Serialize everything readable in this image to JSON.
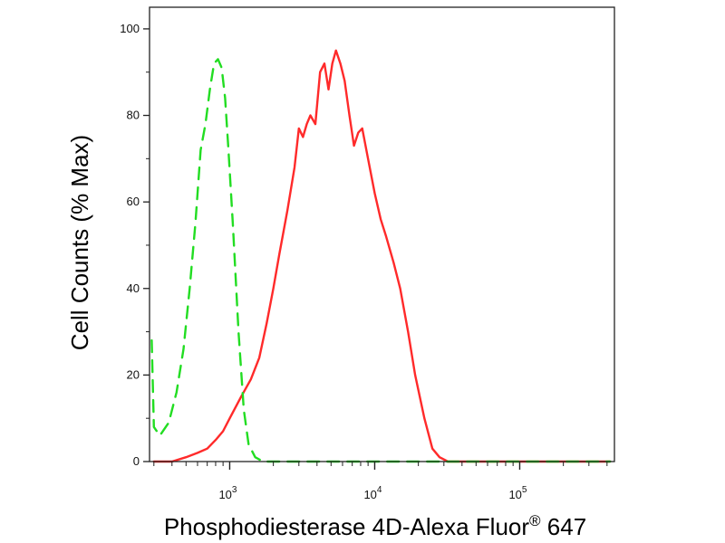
{
  "chart_data": {
    "type": "line",
    "xlabel": "Phosphodiesterase 4D-Alexa Fluor",
    "xlabel_superscript": "®",
    "xlabel_suffix": " 647",
    "ylabel": "Cell Counts (% Max)",
    "x_scale": "log",
    "xlim": [
      280,
      450000
    ],
    "ylim": [
      0,
      105
    ],
    "y_ticks": [
      0,
      20,
      40,
      60,
      80,
      100
    ],
    "x_tick_labels": [
      {
        "value": 1000,
        "base": "10",
        "exp": "3"
      },
      {
        "value": 10000,
        "base": "10",
        "exp": "4"
      },
      {
        "value": 100000,
        "base": "10",
        "exp": "5"
      }
    ],
    "grid": false,
    "legend": "none",
    "series": [
      {
        "color": "#ff2a2a",
        "style": "solid",
        "points": [
          [
            300,
            0
          ],
          [
            400,
            0
          ],
          [
            500,
            1
          ],
          [
            600,
            2
          ],
          [
            700,
            3
          ],
          [
            800,
            5
          ],
          [
            900,
            7
          ],
          [
            1000,
            10
          ],
          [
            1200,
            15
          ],
          [
            1400,
            19
          ],
          [
            1600,
            24
          ],
          [
            1800,
            32
          ],
          [
            2000,
            40
          ],
          [
            2200,
            48
          ],
          [
            2500,
            58
          ],
          [
            2800,
            68
          ],
          [
            3000,
            77
          ],
          [
            3200,
            75
          ],
          [
            3400,
            78
          ],
          [
            3600,
            80
          ],
          [
            3900,
            78
          ],
          [
            4200,
            90
          ],
          [
            4500,
            92
          ],
          [
            4800,
            86
          ],
          [
            5100,
            92
          ],
          [
            5400,
            95
          ],
          [
            5800,
            92
          ],
          [
            6200,
            88
          ],
          [
            6700,
            80
          ],
          [
            7200,
            73
          ],
          [
            7700,
            76
          ],
          [
            8200,
            77
          ],
          [
            9000,
            70
          ],
          [
            10000,
            62
          ],
          [
            11000,
            56
          ],
          [
            12000,
            52
          ],
          [
            13500,
            46
          ],
          [
            15000,
            40
          ],
          [
            17000,
            30
          ],
          [
            19000,
            20
          ],
          [
            22000,
            10
          ],
          [
            25000,
            3
          ],
          [
            28000,
            1
          ],
          [
            32000,
            0
          ],
          [
            40000,
            0
          ],
          [
            60000,
            0
          ],
          [
            100000,
            0
          ],
          [
            200000,
            0
          ],
          [
            420000,
            0
          ]
        ]
      },
      {
        "color": "#22dd22",
        "style": "dashed",
        "points": [
          [
            290,
            28
          ],
          [
            300,
            8
          ],
          [
            330,
            6
          ],
          [
            380,
            9
          ],
          [
            430,
            16
          ],
          [
            480,
            26
          ],
          [
            530,
            40
          ],
          [
            580,
            55
          ],
          [
            630,
            72
          ],
          [
            680,
            78
          ],
          [
            730,
            86
          ],
          [
            780,
            92
          ],
          [
            830,
            93
          ],
          [
            880,
            91
          ],
          [
            930,
            84
          ],
          [
            980,
            72
          ],
          [
            1050,
            55
          ],
          [
            1150,
            30
          ],
          [
            1250,
            12
          ],
          [
            1350,
            4
          ],
          [
            1500,
            1
          ],
          [
            1700,
            0
          ],
          [
            2500,
            0
          ],
          [
            5000,
            0
          ],
          [
            10000,
            0
          ],
          [
            30000,
            0
          ],
          [
            100000,
            0
          ],
          [
            420000,
            0
          ]
        ]
      }
    ]
  }
}
